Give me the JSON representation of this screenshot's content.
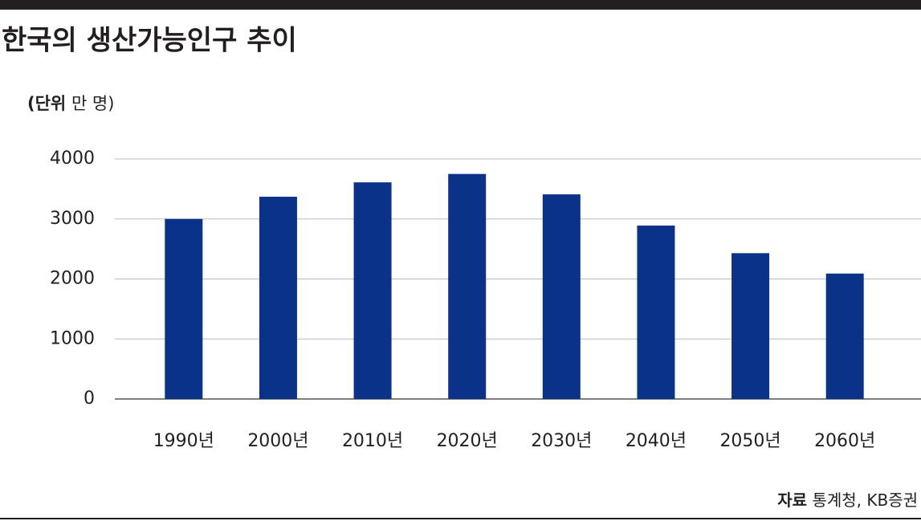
{
  "chart_data": {
    "type": "bar",
    "title": "한국의 생산가능인구 추이",
    "unit": {
      "key": "(단위",
      "text": "만 명)"
    },
    "categories": [
      "1990년",
      "2000년",
      "2010년",
      "2020년",
      "2030년",
      "2040년",
      "2050년",
      "2060년"
    ],
    "values": [
      3000,
      3370,
      3610,
      3750,
      3410,
      2890,
      2430,
      2090
    ],
    "color": "#0a3289",
    "ylim": [
      0,
      4000
    ],
    "yticks": [
      0,
      1000,
      2000,
      3000,
      4000
    ],
    "grid": true,
    "source": {
      "key": "자료",
      "text": "통계청, KB증권"
    }
  }
}
